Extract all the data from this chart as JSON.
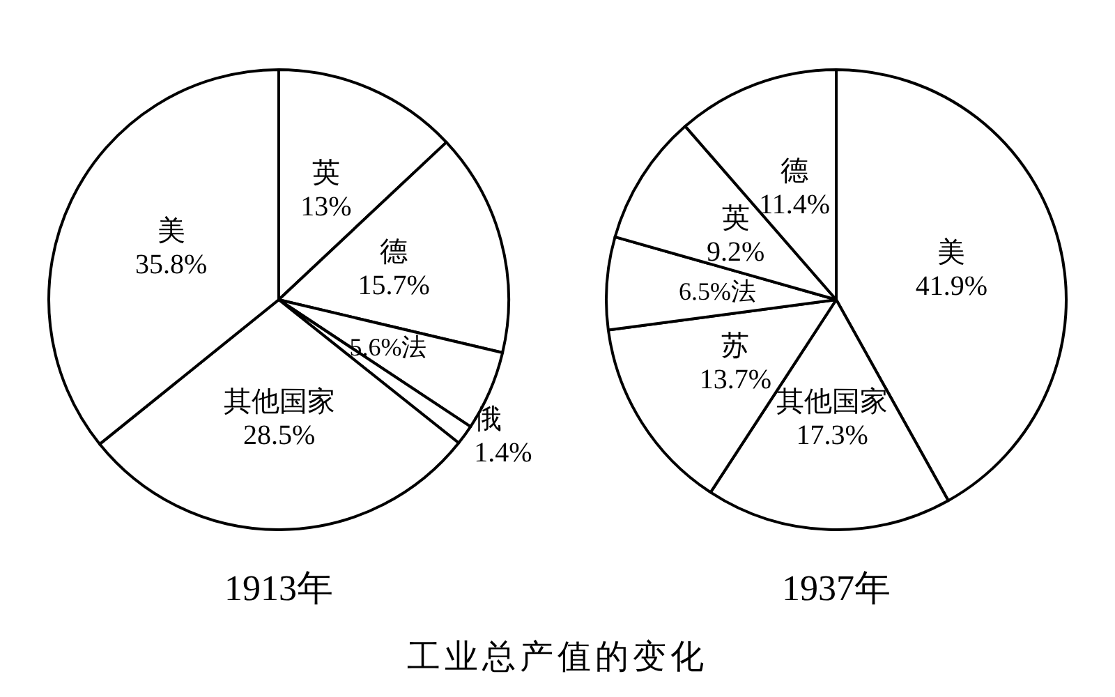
{
  "chart_data": [
    {
      "type": "pie",
      "title": "1913年",
      "categories": [
        "英",
        "德",
        "法",
        "俄",
        "其他国家",
        "美"
      ],
      "values": [
        13,
        15.7,
        5.6,
        1.4,
        28.5,
        35.8
      ],
      "value_labels": [
        "13%",
        "15.7%",
        "5.6%",
        "1.4%",
        "28.5%",
        "35.8%"
      ],
      "colors": [
        "#ffffff",
        "#ffffff",
        "#ffffff",
        "#ffffff",
        "#ffffff",
        "#ffffff"
      ],
      "legend": false
    },
    {
      "type": "pie",
      "title": "1937年",
      "categories": [
        "美",
        "其他国家",
        "苏",
        "法",
        "英",
        "德"
      ],
      "values": [
        41.9,
        17.3,
        13.7,
        6.5,
        9.2,
        11.4
      ],
      "value_labels": [
        "41.9%",
        "17.3%",
        "13.7%",
        "6.5%",
        "9.2%",
        "11.4%"
      ],
      "colors": [
        "#ffffff",
        "#ffffff",
        "#ffffff",
        "#ffffff",
        "#ffffff",
        "#ffffff"
      ],
      "legend": false,
      "annotations": [
        "工业总产值的变化"
      ]
    }
  ]
}
